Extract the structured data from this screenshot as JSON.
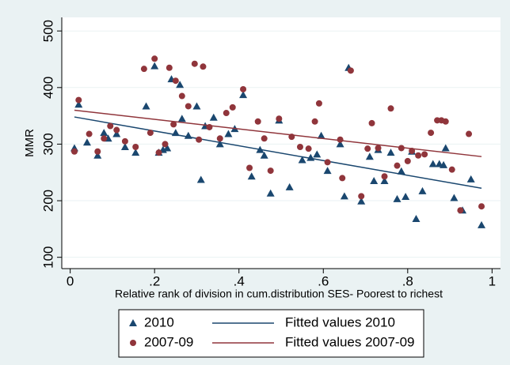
{
  "chart_data": {
    "type": "scatter",
    "xlabel": "Relative rank of division in cum.distribution SES- Poorest to richest",
    "ylabel": "MMR",
    "xlim": [
      -0.02,
      1.02
    ],
    "ylim": [
      80,
      524
    ],
    "xticks": [
      0,
      {
        "value": 0.2,
        "label": ".2"
      },
      {
        "value": 0.4,
        "label": ".4"
      },
      {
        "value": 0.6,
        "label": ".6"
      },
      {
        "value": 0.8,
        "label": ".8"
      },
      1
    ],
    "yticks": [
      100,
      200,
      300,
      400,
      500
    ],
    "grid": true,
    "series": [
      {
        "name": "2010",
        "type": "scatter",
        "marker": "triangle",
        "color": "#1a476f",
        "x": [
          0.01,
          0.02,
          0.04,
          0.065,
          0.08,
          0.09,
          0.11,
          0.13,
          0.155,
          0.18,
          0.2,
          0.21,
          0.22,
          0.23,
          0.24,
          0.25,
          0.26,
          0.265,
          0.28,
          0.3,
          0.31,
          0.32,
          0.34,
          0.355,
          0.375,
          0.39,
          0.41,
          0.43,
          0.45,
          0.46,
          0.475,
          0.495,
          0.52,
          0.55,
          0.57,
          0.585,
          0.595,
          0.61,
          0.64,
          0.65,
          0.66,
          0.69,
          0.71,
          0.72,
          0.73,
          0.745,
          0.76,
          0.775,
          0.785,
          0.795,
          0.81,
          0.82,
          0.835,
          0.86,
          0.875,
          0.885,
          0.89,
          0.91,
          0.93,
          0.95,
          0.975
        ],
        "values": [
          293,
          370,
          303,
          280,
          320,
          310,
          318,
          295,
          285,
          367,
          438,
          285,
          290,
          293,
          415,
          320,
          405,
          345,
          315,
          367,
          237,
          332,
          347,
          300,
          318,
          327,
          387,
          243,
          290,
          280,
          213,
          342,
          224,
          272,
          276,
          282,
          315,
          253,
          300,
          208,
          435,
          199,
          278,
          235,
          290,
          235,
          285,
          203,
          252,
          207,
          287,
          168,
          217,
          265,
          265,
          263,
          293,
          205,
          183,
          238,
          157
        ]
      },
      {
        "name": "Fitted values 2010",
        "type": "line",
        "color": "#1a476f",
        "x": [
          0.01,
          0.975
        ],
        "values": [
          348,
          222
        ]
      },
      {
        "name": "2007-09",
        "type": "scatter",
        "marker": "circle",
        "color": "#90353b",
        "x": [
          0.01,
          0.02,
          0.045,
          0.065,
          0.08,
          0.095,
          0.11,
          0.13,
          0.155,
          0.175,
          0.19,
          0.2,
          0.21,
          0.225,
          0.235,
          0.245,
          0.25,
          0.265,
          0.28,
          0.295,
          0.305,
          0.315,
          0.33,
          0.355,
          0.37,
          0.385,
          0.41,
          0.425,
          0.445,
          0.46,
          0.475,
          0.495,
          0.525,
          0.545,
          0.565,
          0.58,
          0.59,
          0.61,
          0.64,
          0.645,
          0.665,
          0.69,
          0.705,
          0.715,
          0.73,
          0.745,
          0.76,
          0.775,
          0.785,
          0.8,
          0.81,
          0.825,
          0.84,
          0.855,
          0.87,
          0.88,
          0.89,
          0.905,
          0.925,
          0.945,
          0.975
        ],
        "values": [
          287,
          378,
          318,
          287,
          310,
          332,
          325,
          305,
          295,
          433,
          320,
          451,
          285,
          300,
          435,
          335,
          412,
          385,
          367,
          442,
          308,
          437,
          330,
          310,
          355,
          365,
          397,
          258,
          340,
          310,
          253,
          345,
          313,
          295,
          292,
          340,
          372,
          268,
          308,
          240,
          430,
          208,
          292,
          337,
          293,
          243,
          363,
          262,
          293,
          270,
          288,
          280,
          282,
          320,
          342,
          342,
          340,
          255,
          183,
          318,
          190
        ]
      },
      {
        "name": "Fitted values 2007-09",
        "type": "line",
        "color": "#90353b",
        "x": [
          0.01,
          0.975
        ],
        "values": [
          360,
          278
        ]
      }
    ]
  }
}
